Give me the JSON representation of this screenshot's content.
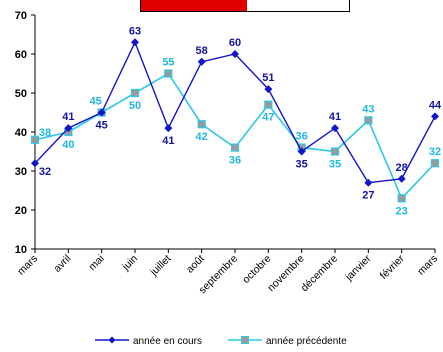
{
  "chart_data": {
    "type": "line",
    "categories": [
      "mars",
      "avril",
      "mai",
      "juin",
      "juillet",
      "août",
      "septembre",
      "octobre",
      "novembre",
      "décembre",
      "janvier",
      "février",
      "mars"
    ],
    "ylim": [
      10,
      70
    ],
    "yticks": [
      10,
      20,
      30,
      40,
      50,
      60,
      70
    ],
    "grid": false,
    "legend_position": "bottom",
    "series": [
      {
        "name": "année en cours",
        "values": [
          32,
          41,
          45,
          63,
          41,
          58,
          60,
          51,
          35,
          41,
          27,
          28,
          44
        ],
        "color": "#1414c8",
        "marker": "diamond"
      },
      {
        "name": "année précédente",
        "values": [
          38,
          40,
          45,
          50,
          55,
          42,
          36,
          47,
          36,
          35,
          43,
          23,
          32
        ],
        "color": "#2ec8e6",
        "marker": "square"
      }
    ]
  },
  "banner": {
    "fill_color": "#e00000",
    "fill_fraction": 0.51
  }
}
